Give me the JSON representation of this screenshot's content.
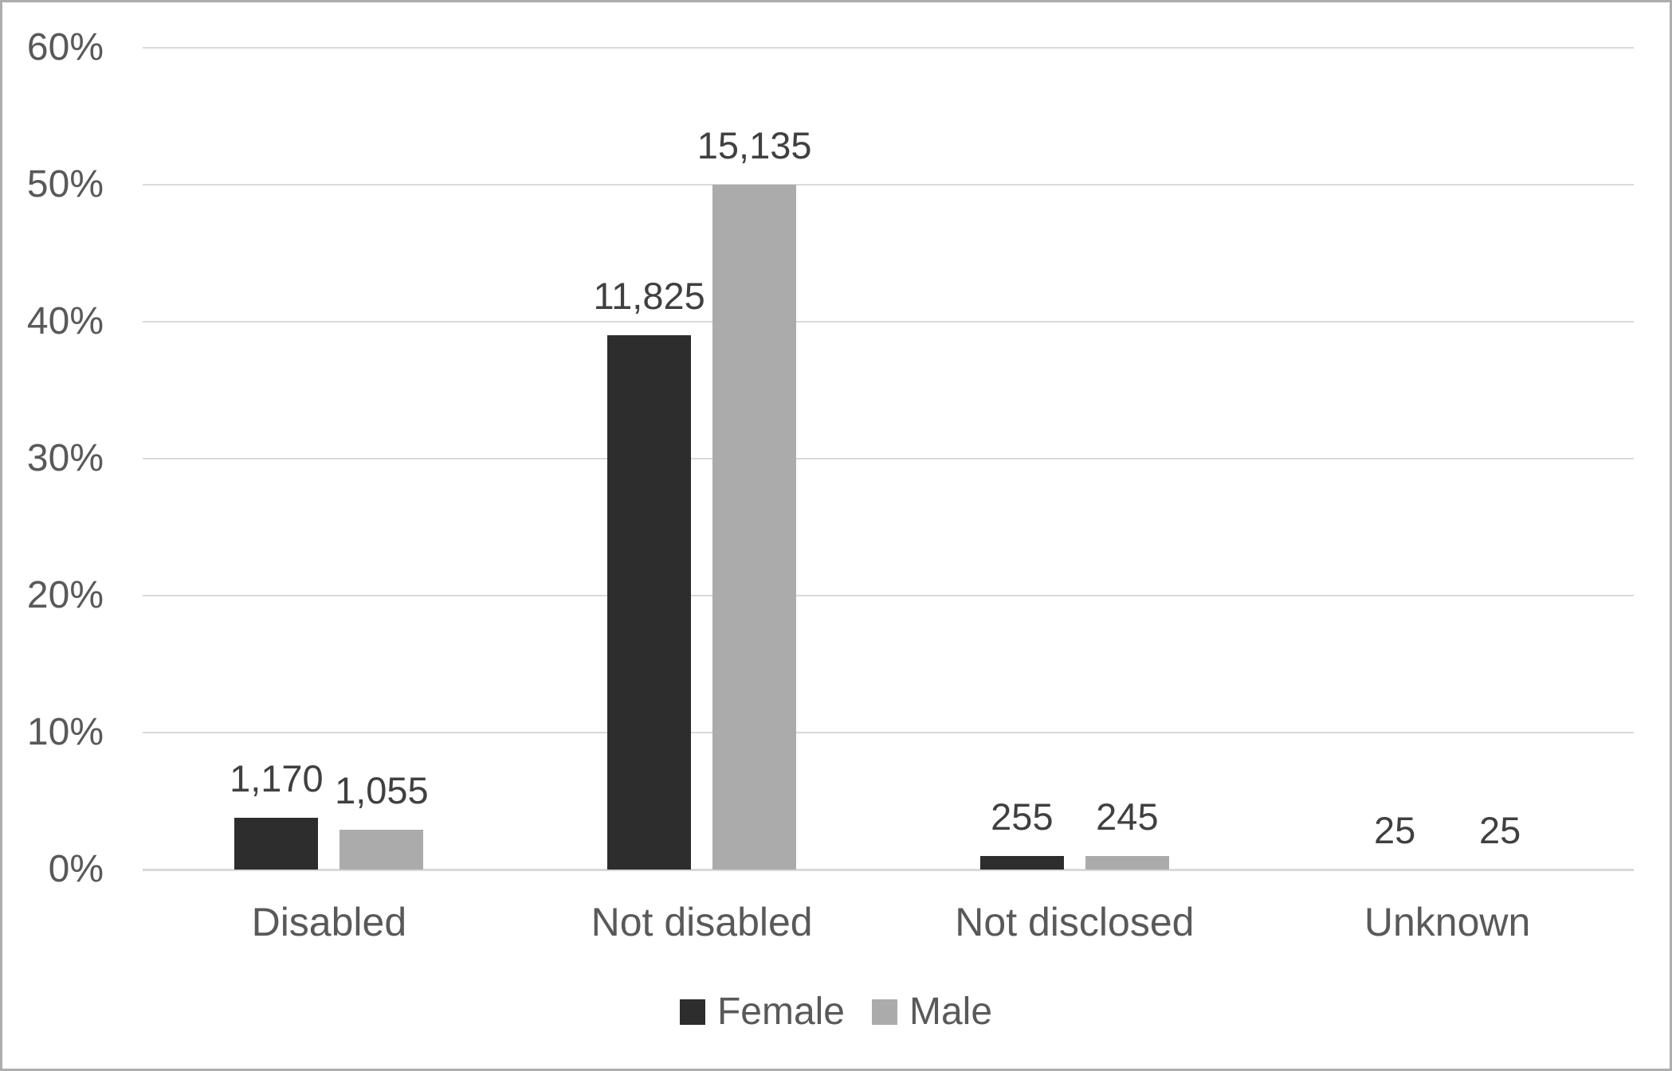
{
  "chart_data": {
    "type": "bar",
    "title": "",
    "categories": [
      "Disabled",
      "Not disabled",
      "Not disclosed",
      "Unknown"
    ],
    "series": [
      {
        "name": "Female",
        "color": "#2d2d2d",
        "values": [
          1170,
          11825,
          255,
          25
        ],
        "value_labels": [
          "1,170",
          "11,825",
          "255",
          "25"
        ],
        "percent_heights": [
          3.8,
          39,
          1,
          0
        ]
      },
      {
        "name": "Male",
        "color": "#ababab",
        "values": [
          1055,
          15135,
          245,
          25
        ],
        "value_labels": [
          "1,055",
          "15,135",
          "245",
          "25"
        ],
        "percent_heights": [
          2.9,
          50,
          1,
          0
        ]
      }
    ],
    "y_axis": {
      "min": 0,
      "max": 60,
      "step": 10,
      "tick_labels": [
        "0%",
        "10%",
        "20%",
        "30%",
        "40%",
        "50%",
        "60%"
      ],
      "format": "percent"
    },
    "grid": true,
    "legend": {
      "position": "bottom",
      "items": [
        "Female",
        "Male"
      ]
    },
    "colors": {
      "gridline": "#d9d9d9",
      "axis_text": "#595959",
      "data_label_text": "#404040",
      "background": "#ffffff",
      "frame_border": "#aeaeae"
    }
  }
}
